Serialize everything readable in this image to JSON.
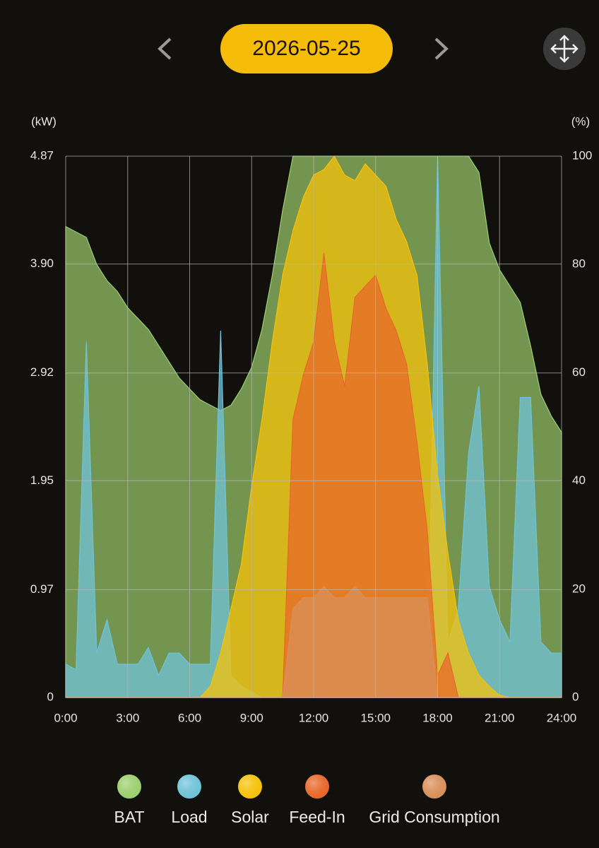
{
  "header": {
    "date": "2026-05-25"
  },
  "chart_data": {
    "type": "area",
    "y_label": "(kW)",
    "y2_label": "(%)",
    "x": [
      0,
      0.5,
      1,
      1.5,
      2,
      2.5,
      3,
      3.5,
      4,
      4.5,
      5,
      5.5,
      6,
      6.5,
      7,
      7.5,
      8,
      8.5,
      9,
      9.5,
      10,
      10.5,
      11,
      11.5,
      12,
      12.5,
      13,
      13.5,
      14,
      14.5,
      15,
      15.5,
      16,
      16.5,
      17,
      17.5,
      18,
      18.5,
      19,
      19.5,
      20,
      20.5,
      21,
      21.5,
      22,
      22.5,
      23,
      23.5,
      24
    ],
    "xlim": [
      0,
      24
    ],
    "xticks": [
      {
        "value": 0,
        "label": "0:00"
      },
      {
        "value": 3,
        "label": "3:00"
      },
      {
        "value": 6,
        "label": "6:00"
      },
      {
        "value": 9,
        "label": "9:00"
      },
      {
        "value": 12,
        "label": "12:00"
      },
      {
        "value": 15,
        "label": "15:00"
      },
      {
        "value": 18,
        "label": "18:00"
      },
      {
        "value": 21,
        "label": "21:00"
      },
      {
        "value": 24,
        "label": "24:00"
      }
    ],
    "ylim": [
      0,
      4.87
    ],
    "yticks": [
      0,
      0.97,
      1.95,
      2.92,
      {
        "value": 3.9,
        "label": "3.90"
      },
      4.87
    ],
    "y2lim": [
      0,
      100
    ],
    "y2ticks": [
      0,
      20,
      40,
      60,
      80,
      100
    ],
    "grid": true,
    "series": [
      {
        "name": "BAT",
        "color": "#9ccf6e",
        "axis": "y2",
        "values": [
          87,
          86,
          85,
          80,
          77,
          75,
          72,
          70,
          68,
          65,
          62,
          59,
          57,
          55,
          54,
          53,
          54,
          57,
          61,
          68,
          78,
          90,
          100,
          100,
          100,
          100,
          100,
          100,
          100,
          100,
          100,
          100,
          100,
          100,
          100,
          100,
          100,
          100,
          100,
          100,
          97,
          84,
          79,
          76,
          73,
          65,
          56,
          52,
          49
        ]
      },
      {
        "name": "Load",
        "color": "#6fc3d8",
        "values": [
          0.3,
          0.25,
          3.2,
          0.4,
          0.7,
          0.3,
          0.3,
          0.3,
          0.45,
          0.2,
          0.4,
          0.4,
          0.3,
          0.3,
          0.3,
          3.3,
          0.2,
          0.1,
          0.05,
          0,
          0,
          0,
          0,
          0,
          0,
          0,
          0,
          0,
          0,
          0,
          0,
          0,
          0,
          0,
          0,
          0,
          4.87,
          0.5,
          0.8,
          2.2,
          2.8,
          1.0,
          0.7,
          0.5,
          2.7,
          2.7,
          0.5,
          0.4,
          0.4
        ]
      },
      {
        "name": "Solar",
        "color": "#f5c20a",
        "values": [
          0,
          0,
          0,
          0,
          0,
          0,
          0,
          0,
          0,
          0,
          0,
          0,
          0,
          0,
          0.1,
          0.4,
          0.8,
          1.2,
          1.9,
          2.5,
          3.2,
          3.8,
          4.2,
          4.5,
          4.7,
          4.75,
          4.87,
          4.7,
          4.65,
          4.8,
          4.7,
          4.6,
          4.3,
          4.1,
          3.8,
          3.0,
          2.0,
          1.3,
          0.7,
          0.4,
          0.2,
          0.1,
          0.02,
          0,
          0,
          0,
          0,
          0,
          0
        ]
      },
      {
        "name": "Feed-In",
        "color": "#e8682a",
        "values": [
          0,
          0,
          0,
          0,
          0,
          0,
          0,
          0,
          0,
          0,
          0,
          0,
          0,
          0,
          0,
          0,
          0,
          0,
          0,
          0,
          0,
          0,
          2.5,
          2.9,
          3.2,
          4.0,
          3.2,
          2.8,
          3.6,
          3.7,
          3.8,
          3.5,
          3.3,
          3.0,
          2.3,
          1.5,
          0.2,
          0.4,
          0,
          0,
          0,
          0,
          0,
          0,
          0,
          0,
          0,
          0,
          0
        ]
      },
      {
        "name": "Grid Consumption",
        "color": "#d8905a",
        "values": [
          0,
          0,
          0,
          0,
          0,
          0,
          0,
          0,
          0,
          0,
          0,
          0,
          0,
          0,
          0,
          0,
          0,
          0,
          0,
          0,
          0,
          0,
          0.8,
          0.9,
          0.9,
          1.0,
          0.9,
          0.9,
          1.0,
          0.9,
          0.9,
          0.9,
          0.9,
          0.9,
          0.9,
          0.9,
          0,
          0,
          0,
          0,
          0,
          0,
          0,
          0,
          0,
          0,
          0,
          0,
          0
        ]
      }
    ]
  }
}
